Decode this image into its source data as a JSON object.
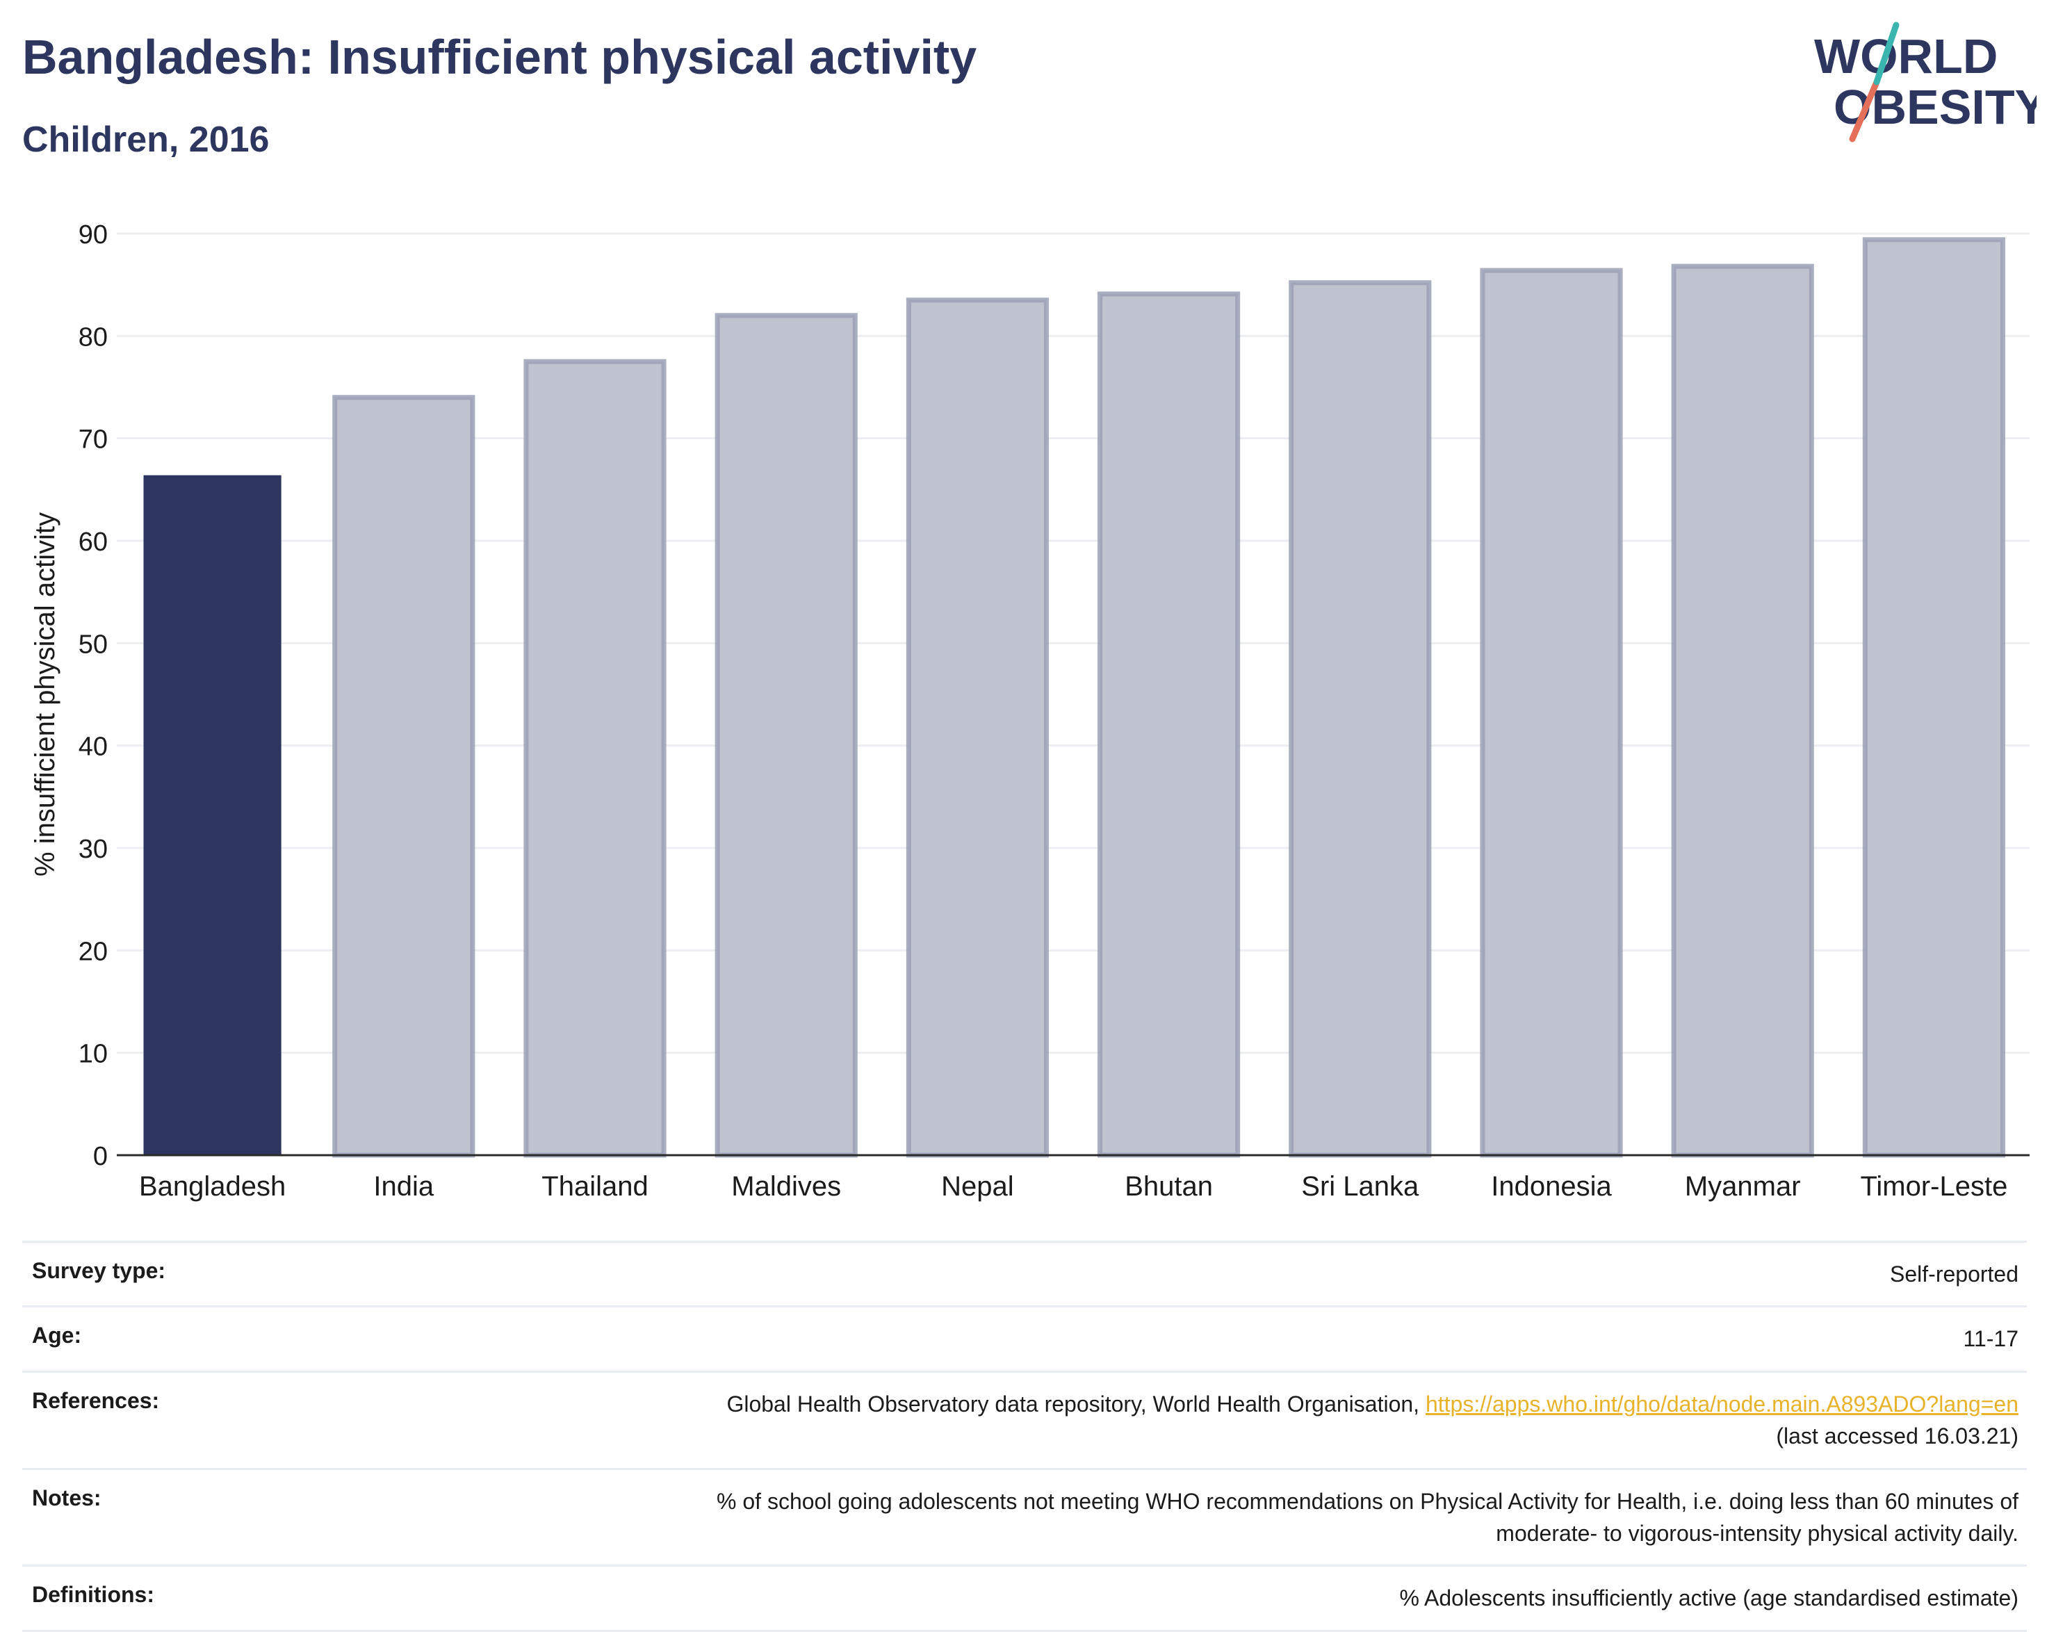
{
  "header": {
    "title": "Bangladesh: Insufficient physical activity",
    "subtitle": "Children, 2016"
  },
  "logo": {
    "line1": "WORLD",
    "line2": "OBESITY",
    "accent_colors": [
      "#3ab5b0",
      "#e4705a"
    ]
  },
  "chart_data": {
    "type": "bar",
    "title": "Bangladesh: Insufficient physical activity",
    "subtitle": "Children, 2016",
    "xlabel": "",
    "ylabel": "% insufficient physical activity",
    "ylim": [
      0,
      90
    ],
    "yticks": [
      0,
      10,
      20,
      30,
      40,
      50,
      60,
      70,
      80,
      90
    ],
    "grid": true,
    "categories": [
      "Bangladesh",
      "India",
      "Thailand",
      "Maldives",
      "Nepal",
      "Bhutan",
      "Sri Lanka",
      "Indonesia",
      "Myanmar",
      "Timor-Leste"
    ],
    "values": [
      66.4,
      74.0,
      77.5,
      82.0,
      83.5,
      84.1,
      85.2,
      86.4,
      86.8,
      89.4
    ],
    "highlight": "Bangladesh",
    "colors": {
      "highlight": "#2c365e",
      "other_fill": "#bfc2cf",
      "other_stroke": "#9aa0b6",
      "grid": "#eceef2",
      "axis": "#2b2b2b"
    }
  },
  "metadata": [
    {
      "label": "Survey type:",
      "value": "Self-reported"
    },
    {
      "label": "Age:",
      "value": "11-17"
    },
    {
      "label": "References:",
      "value_prefix": "Global Health Observatory data repository, World Health Organisation, ",
      "link": "https://apps.who.int/gho/data/node.main.A893ADO?lang=en",
      "value_suffix": "(last accessed 16.03.21)"
    },
    {
      "label": "Notes:",
      "value_line1": "% of school going adolescents not meeting WHO recommendations on Physical Activity for Health, i.e. doing less than 60 minutes of",
      "value_line2": "moderate- to vigorous-intensity physical activity daily."
    },
    {
      "label": "Definitions:",
      "value": "% Adolescents insufficiently active (age standardised estimate)"
    }
  ]
}
